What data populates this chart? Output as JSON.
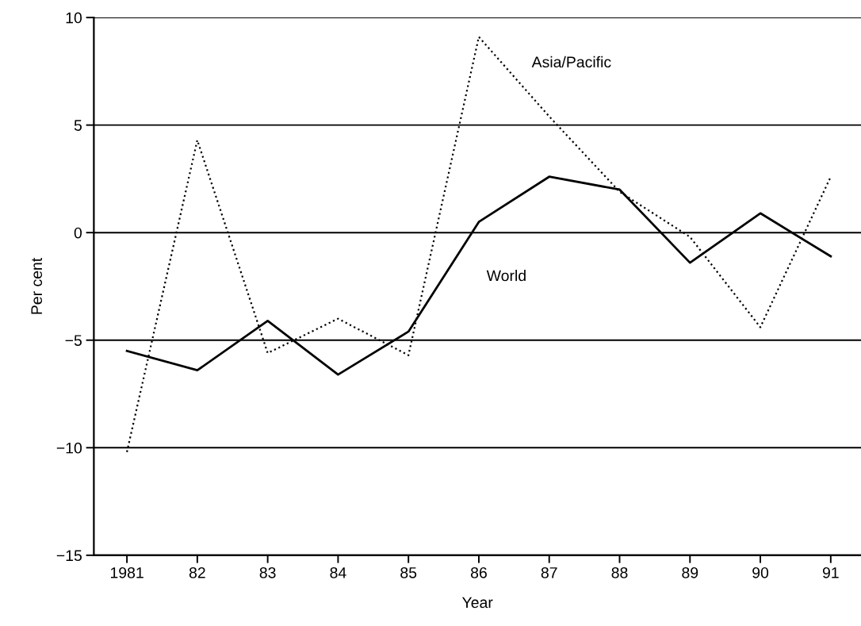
{
  "chart_data": {
    "type": "line",
    "xlabel": "Year",
    "ylabel": "Per cent",
    "x": [
      1981,
      1982,
      1983,
      1984,
      1985,
      1986,
      1987,
      1988,
      1989,
      1990,
      1991
    ],
    "series": [
      {
        "name": "World",
        "color": "#000000",
        "line_style": "solid",
        "values": [
          -5.5,
          -6.4,
          -4.1,
          -6.6,
          -4.6,
          0.5,
          2.6,
          2.0,
          -1.4,
          0.9,
          -1.1
        ]
      },
      {
        "name": "Asia/Pacific",
        "color": "#000000",
        "line_style": "dotted",
        "values": [
          -10.2,
          4.3,
          -5.6,
          -4.0,
          -5.7,
          9.1,
          5.4,
          1.9,
          -0.2,
          -4.4,
          2.6
        ]
      }
    ],
    "xlim": [
      1980.53,
      1991.43
    ],
    "xticks": [
      {
        "value": 1981,
        "label": "1981"
      },
      {
        "value": 1982,
        "label": "82"
      },
      {
        "value": 1983,
        "label": "83"
      },
      {
        "value": 1984,
        "label": "84"
      },
      {
        "value": 1985,
        "label": "85"
      },
      {
        "value": 1986,
        "label": "86"
      },
      {
        "value": 1987,
        "label": "87"
      },
      {
        "value": 1988,
        "label": "88"
      },
      {
        "value": 1989,
        "label": "89"
      },
      {
        "value": 1990,
        "label": "90"
      },
      {
        "value": 1991,
        "label": "91"
      }
    ],
    "ylim": [
      -15,
      10
    ],
    "yticks": [
      {
        "value": -15,
        "label": "−15"
      },
      {
        "value": -10,
        "label": "−10"
      },
      {
        "value": -5,
        "label": "−5"
      },
      0,
      5,
      10
    ],
    "grid": "y",
    "legend": false,
    "marker": "none"
  }
}
